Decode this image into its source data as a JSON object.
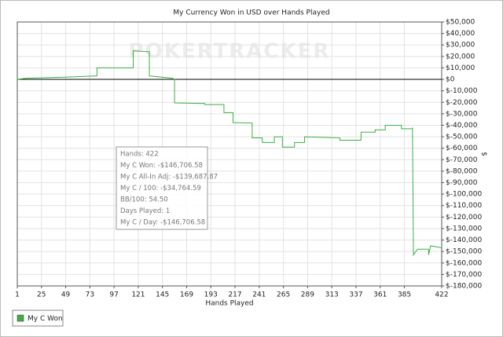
{
  "chart_data": {
    "type": "line",
    "title": "My Currency Won in USD over Hands Played",
    "watermark": "POKERTRACKER",
    "x_label": "Hands Played",
    "y_label": "$",
    "x": [
      1,
      10,
      50,
      80,
      80,
      116,
      116,
      132,
      132,
      155,
      157,
      157,
      187,
      187,
      206,
      206,
      215,
      215,
      234,
      234,
      244,
      244,
      256,
      256,
      264,
      264,
      276,
      276,
      286,
      286,
      321,
      321,
      342,
      342,
      356,
      356,
      366,
      366,
      382,
      382,
      393,
      393,
      394,
      398,
      409,
      409,
      411,
      422
    ],
    "series": [
      {
        "name": "My C Won",
        "color": "#3cb043",
        "values": [
          0,
          1000,
          2000,
          3000,
          10000,
          10000,
          25000,
          24000,
          3000,
          1000,
          0,
          -20500,
          -21000,
          -22000,
          -22000,
          -29000,
          -29000,
          -37700,
          -38000,
          -51000,
          -51000,
          -55000,
          -55000,
          -50000,
          -50000,
          -59000,
          -59000,
          -55000,
          -55000,
          -50000,
          -51000,
          -53000,
          -53000,
          -46000,
          -46000,
          -44000,
          -44000,
          -40000,
          -40000,
          -43000,
          -43000,
          -42000,
          -153000,
          -148000,
          -148000,
          -153000,
          -145000,
          -146706.58
        ]
      }
    ],
    "xlim": [
      1,
      422
    ],
    "xticks": [
      1,
      25,
      49,
      73,
      97,
      121,
      145,
      169,
      193,
      217,
      241,
      265,
      289,
      313,
      337,
      361,
      385,
      422
    ],
    "ylim": [
      -180000,
      50000
    ],
    "yticks": [
      {
        "value": 50000,
        "label": "$50,000"
      },
      {
        "value": 40000,
        "label": "$40,000"
      },
      {
        "value": 30000,
        "label": "$30,000"
      },
      {
        "value": 20000,
        "label": "$20,000"
      },
      {
        "value": 10000,
        "label": "$10,000"
      },
      {
        "value": 0,
        "label": "$0"
      },
      {
        "value": -10000,
        "label": "$-10,000"
      },
      {
        "value": -20000,
        "label": "$-20,000"
      },
      {
        "value": -30000,
        "label": "$-30,000"
      },
      {
        "value": -40000,
        "label": "$-40,000"
      },
      {
        "value": -50000,
        "label": "$-50,000"
      },
      {
        "value": -60000,
        "label": "$-60,000"
      },
      {
        "value": -70000,
        "label": "$-70,000"
      },
      {
        "value": -80000,
        "label": "$-80,000"
      },
      {
        "value": -90000,
        "label": "$-90,000"
      },
      {
        "value": -100000,
        "label": "$-100,000"
      },
      {
        "value": -110000,
        "label": "$-110,000"
      },
      {
        "value": -120000,
        "label": "$-120,000"
      },
      {
        "value": -130000,
        "label": "$-130,000"
      },
      {
        "value": -140000,
        "label": "$-140,000"
      },
      {
        "value": -150000,
        "label": "$-150,000"
      },
      {
        "value": -160000,
        "label": "$-160,000"
      },
      {
        "value": -170000,
        "label": "$-170,000"
      },
      {
        "value": -180000,
        "label": "$-180,000"
      }
    ],
    "grid": true,
    "annotations": [
      "Hands: 422",
      "My C Won: -$146,706.58",
      "My C All-In Adj: -$139,687.87",
      "My C / 100: -$34,764.59",
      "BB/100: 54.50",
      "Days Played: 1",
      "My C / Day: -$146,706.58"
    ]
  }
}
